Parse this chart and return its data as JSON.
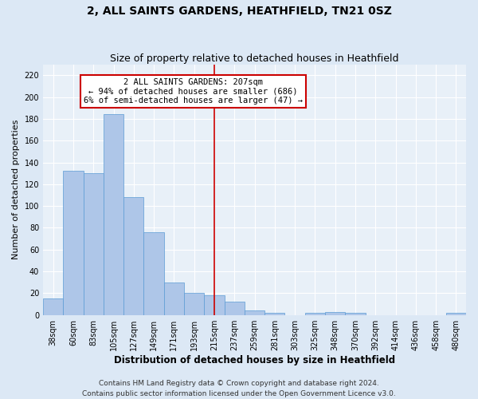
{
  "title": "2, ALL SAINTS GARDENS, HEATHFIELD, TN21 0SZ",
  "subtitle": "Size of property relative to detached houses in Heathfield",
  "xlabel": "Distribution of detached houses by size in Heathfield",
  "ylabel": "Number of detached properties",
  "categories": [
    "38sqm",
    "60sqm",
    "83sqm",
    "105sqm",
    "127sqm",
    "149sqm",
    "171sqm",
    "193sqm",
    "215sqm",
    "237sqm",
    "259sqm",
    "281sqm",
    "303sqm",
    "325sqm",
    "348sqm",
    "370sqm",
    "392sqm",
    "414sqm",
    "436sqm",
    "458sqm",
    "480sqm"
  ],
  "values": [
    15,
    132,
    130,
    184,
    108,
    76,
    30,
    20,
    18,
    12,
    4,
    2,
    0,
    2,
    3,
    2,
    0,
    0,
    0,
    0,
    2
  ],
  "bar_color": "#aec6e8",
  "bar_edge_color": "#5b9bd5",
  "vline_x": 8,
  "vline_color": "#cc0000",
  "annotation_text": "2 ALL SAINTS GARDENS: 207sqm\n← 94% of detached houses are smaller (686)\n6% of semi-detached houses are larger (47) →",
  "annotation_box_color": "#ffffff",
  "annotation_box_edge_color": "#cc0000",
  "ylim": [
    0,
    230
  ],
  "yticks": [
    0,
    20,
    40,
    60,
    80,
    100,
    120,
    140,
    160,
    180,
    200,
    220
  ],
  "footer1": "Contains HM Land Registry data © Crown copyright and database right 2024.",
  "footer2": "Contains public sector information licensed under the Open Government Licence v3.0.",
  "background_color": "#dce8f5",
  "plot_background": "#e8f0f8",
  "grid_color": "#ffffff",
  "title_fontsize": 10,
  "subtitle_fontsize": 9,
  "axis_fontsize": 8,
  "tick_fontsize": 7,
  "footer_fontsize": 6.5,
  "annotation_fontsize": 7.5
}
